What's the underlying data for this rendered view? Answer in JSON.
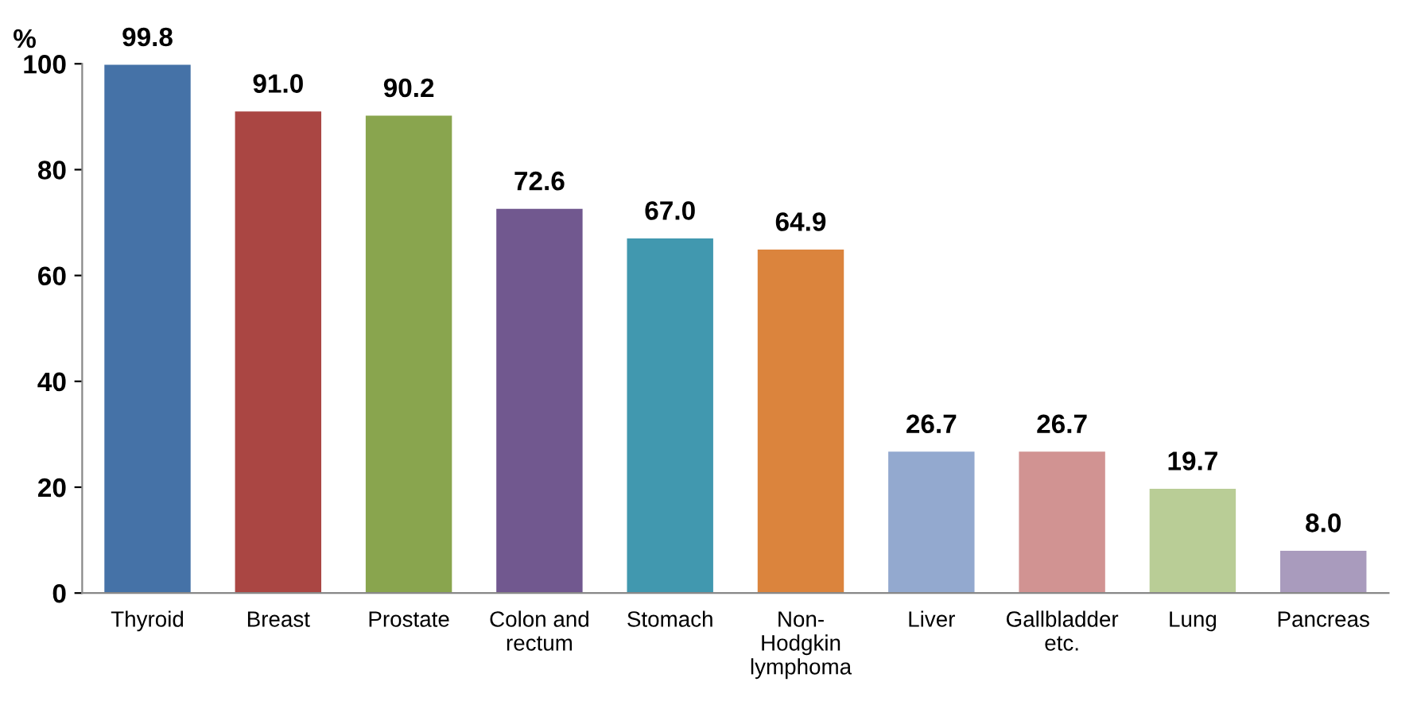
{
  "chart_data": {
    "type": "bar",
    "ylabel": "%",
    "categories": [
      "Thyroid",
      "Breast",
      "Prostate",
      "Colon and\nrectum",
      "Stomach",
      "Non-\nHodgkin\nlymphoma",
      "Liver",
      "Gallbladder\netc.",
      "Lung",
      "Pancreas"
    ],
    "values": [
      99.8,
      91.0,
      90.2,
      72.6,
      67.0,
      64.9,
      26.7,
      26.7,
      19.7,
      8.0
    ],
    "colors": [
      "#4572a7",
      "#aa4643",
      "#89a54e",
      "#71588f",
      "#4198af",
      "#db843d",
      "#93a9cf",
      "#d19392",
      "#b9cd96",
      "#a99bbd"
    ],
    "value_labels": [
      "99.8",
      "91.0",
      "90.2",
      "72.6",
      "67.0",
      "64.9",
      "26.7",
      "26.7",
      "19.7",
      "8.0"
    ],
    "ylim": [
      0,
      100
    ],
    "yticks": [
      0,
      20,
      40,
      60,
      80,
      100
    ],
    "grid": false,
    "legend": false
  }
}
